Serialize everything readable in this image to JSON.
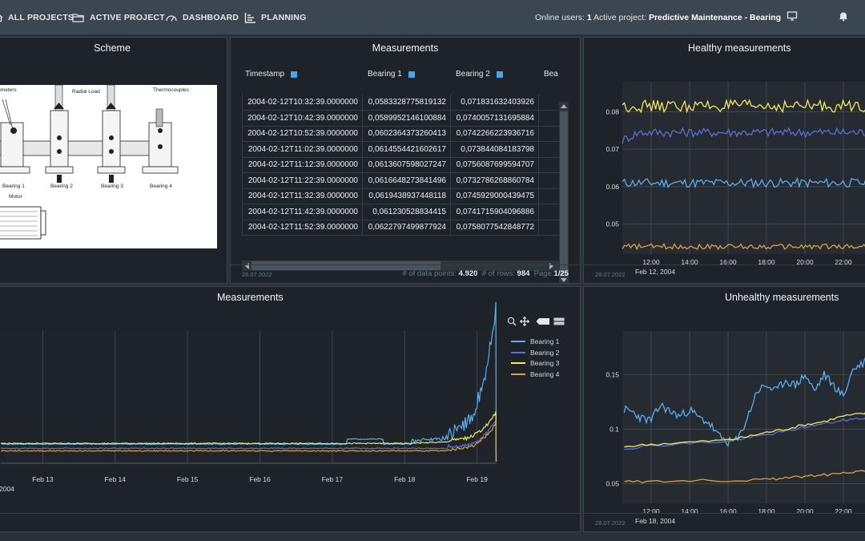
{
  "nav": {
    "items": [
      {
        "label": "ALL PROJECTS",
        "icon": "home-icon"
      },
      {
        "label": "ACTIVE PROJECT",
        "icon": "folder-icon"
      },
      {
        "label": "DASHBOARD",
        "icon": "gauge-icon"
      },
      {
        "label": "PLANNING",
        "icon": "planning-icon"
      }
    ],
    "online_users_label": "Online users:",
    "online_users_value": "1",
    "active_project_label": "Active project:",
    "active_project_value": "Predictive Maintenance - Bearing"
  },
  "scheme": {
    "title": "Scheme",
    "labels": {
      "accelerometers": "rometers",
      "radial_load": "Radial Load",
      "thermocouples": "Thermocouples",
      "bearing1": "Bearing 1",
      "bearing2": "Bearing 2",
      "bearing3": "Bearing 3",
      "bearing4": "Bearing 4",
      "motor": "Motor"
    }
  },
  "table": {
    "title": "Measurements",
    "columns": [
      "Timestamp",
      "Bearing 1",
      "Bearing 2",
      "Bea"
    ],
    "rows": [
      [
        "2004-02-12T10:32:39.0000000",
        "0,0583328775819132",
        "0,071831632403926"
      ],
      [
        "2004-02-12T10:42:39.0000000",
        "0,0589952146100884",
        "0,0740057131695884"
      ],
      [
        "2004-02-12T10:52:39.0000000",
        "0,0602364373260413",
        "0,0742266223936716"
      ],
      [
        "2004-02-12T11:02:39.0000000",
        "0,0614554421602617",
        "0,073844084183798"
      ],
      [
        "2004-02-12T11:12:39.0000000",
        "0,0613607598027247",
        "0,0756087699594707"
      ],
      [
        "2004-02-12T11:22:39.0000000",
        "0,0616648273841496",
        "0,0732786268860784"
      ],
      [
        "2004-02-12T11:32:39.0000000",
        "0,0619438937448118",
        "0,0745929000439475"
      ],
      [
        "2004-02-12T11:42:39.0000000",
        "0,061230528834415",
        "0,0741715904096886"
      ],
      [
        "2004-02-12T11:52:39.0000000",
        "0,0622797499877924",
        "0,0758077542848772"
      ]
    ],
    "date": "28.07.2022",
    "data_points_label": "# of data points:",
    "data_points_value": "4.920",
    "rows_label": "# of rows:",
    "rows_value": "984",
    "page_label": "Page:",
    "page_value": "1/25"
  },
  "colors": {
    "bearing1": "#5aaef0",
    "bearing2": "#5b6fd6",
    "bearing3": "#f2ea5a",
    "bearing4": "#e0a23a"
  },
  "healthy": {
    "title": "Healthy measurements",
    "date": "28.07.2022"
  },
  "main": {
    "title": "Measurements"
  },
  "unhealthy": {
    "title": "Unhealthy measurements",
    "date": "28.07.2022"
  },
  "legend": [
    "Bearing 1",
    "Bearing 2",
    "Bearing 3",
    "Bearing 4"
  ],
  "chart_data": [
    {
      "type": "line",
      "title": "Healthy measurements",
      "x_ticks": [
        "12:00",
        "14:00",
        "16:00",
        "18:00",
        "20:00",
        "22:00"
      ],
      "x_sublabel": "Feb 12, 2004",
      "y_ticks": [
        "0.05",
        "0.06",
        "0.07",
        "0.08"
      ],
      "x_hours": [
        10.5,
        23.5
      ],
      "ylim": [
        0.042,
        0.088
      ],
      "series": [
        {
          "name": "Bearing 1",
          "base": 0.061,
          "noise": 0.0012,
          "trend": 0.0
        },
        {
          "name": "Bearing 2",
          "base": 0.0745,
          "noise": 0.0012,
          "trend": 0.0015
        },
        {
          "name": "Bearing 3",
          "base": 0.0815,
          "noise": 0.0016,
          "trend": 0.0
        },
        {
          "name": "Bearing 4",
          "base": 0.044,
          "noise": 0.0007,
          "trend": 0.0
        }
      ]
    },
    {
      "type": "line",
      "title": "Measurements",
      "x_ticks": [
        "Feb 13",
        "Feb 14",
        "Feb 15",
        "Feb 16",
        "Feb 17",
        "Feb 18",
        "Feb 19"
      ],
      "x_sublabel": "2004",
      "series": [
        {
          "name": "Bearing 1"
        },
        {
          "name": "Bearing 2"
        },
        {
          "name": "Bearing 3"
        },
        {
          "name": "Bearing 4"
        }
      ]
    },
    {
      "type": "line",
      "title": "Unhealthy measurements",
      "x_ticks": [
        "12:00",
        "14:00",
        "16:00",
        "18:00",
        "20:00",
        "22:00"
      ],
      "x_sublabel": "Feb 18, 2004",
      "y_ticks": [
        "0.05",
        "0.1",
        "0.15"
      ],
      "x_hours": [
        10.5,
        23.5
      ],
      "ylim": [
        0.032,
        0.19
      ],
      "series": [
        {
          "name": "Bearing 1",
          "points": [
            [
              10.6,
              0.118
            ],
            [
              11,
              0.116
            ],
            [
              11.5,
              0.11
            ],
            [
              12,
              0.108
            ],
            [
              12.5,
              0.122
            ],
            [
              13,
              0.116
            ],
            [
              13.5,
              0.112
            ],
            [
              14,
              0.118
            ],
            [
              14.5,
              0.11
            ],
            [
              15,
              0.106
            ],
            [
              15.5,
              0.094
            ],
            [
              16,
              0.088
            ],
            [
              16.5,
              0.09
            ],
            [
              17,
              0.11
            ],
            [
              17.5,
              0.135
            ],
            [
              18,
              0.14
            ],
            [
              18.5,
              0.135
            ],
            [
              19,
              0.145
            ],
            [
              19.5,
              0.14
            ],
            [
              20,
              0.15
            ],
            [
              20.5,
              0.135
            ],
            [
              21,
              0.15
            ],
            [
              21.5,
              0.14
            ],
            [
              22,
              0.13
            ],
            [
              22.5,
              0.155
            ],
            [
              23,
              0.16
            ],
            [
              23.5,
              0.175
            ]
          ]
        },
        {
          "name": "Bearing 2",
          "points": [
            [
              10.6,
              0.082
            ],
            [
              12,
              0.085
            ],
            [
              14,
              0.087
            ],
            [
              16,
              0.089
            ],
            [
              17,
              0.092
            ],
            [
              18,
              0.095
            ],
            [
              19,
              0.098
            ],
            [
              20,
              0.102
            ],
            [
              21,
              0.105
            ],
            [
              22,
              0.108
            ],
            [
              23,
              0.11
            ],
            [
              23.5,
              0.112
            ]
          ]
        },
        {
          "name": "Bearing 3",
          "points": [
            [
              10.6,
              0.084
            ],
            [
              12,
              0.086
            ],
            [
              14,
              0.088
            ],
            [
              16,
              0.09
            ],
            [
              17,
              0.093
            ],
            [
              18,
              0.097
            ],
            [
              19,
              0.1
            ],
            [
              20,
              0.104
            ],
            [
              21,
              0.107
            ],
            [
              22,
              0.112
            ],
            [
              23,
              0.114
            ],
            [
              23.5,
              0.116
            ]
          ]
        },
        {
          "name": "Bearing 4",
          "points": [
            [
              10.6,
              0.052
            ],
            [
              12,
              0.052
            ],
            [
              14,
              0.053
            ],
            [
              16,
              0.053
            ],
            [
              18,
              0.054
            ],
            [
              19,
              0.055
            ],
            [
              20,
              0.057
            ],
            [
              21,
              0.058
            ],
            [
              22,
              0.06
            ],
            [
              23,
              0.061
            ],
            [
              23.5,
              0.062
            ]
          ]
        }
      ]
    }
  ]
}
